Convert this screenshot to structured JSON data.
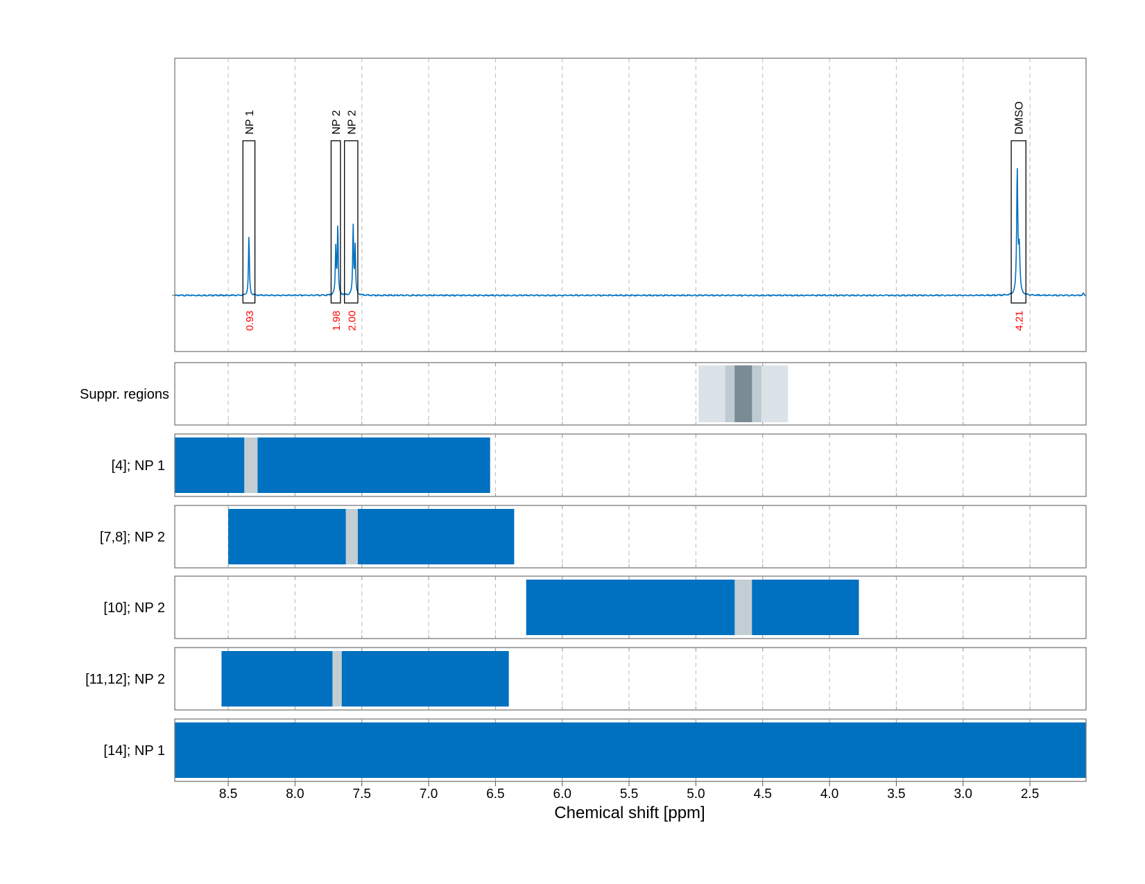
{
  "chart_data": {
    "type": "line",
    "x_axis": {
      "label": "Chemical shift [ppm]",
      "range": [
        8.9,
        2.08
      ],
      "reversed": true,
      "ticks": [
        8.5,
        8.0,
        7.5,
        7.0,
        6.5,
        6.0,
        5.5,
        5.0,
        4.5,
        4.0,
        3.5,
        3.0,
        2.5
      ],
      "tick_labels": [
        "8.5",
        "8.0",
        "7.5",
        "7.0",
        "6.5",
        "6.0",
        "5.5",
        "5.0",
        "4.5",
        "4.0",
        "3.5",
        "3.0",
        "2.5"
      ],
      "grid": true
    },
    "spectrum": {
      "color": "#0070c0",
      "baseline": 0,
      "y_range": [
        -0.33,
        1.0
      ],
      "peaks": [
        {
          "ppm": 8.345,
          "height": 0.41,
          "width": 0.004
        },
        {
          "ppm": 7.695,
          "height": 0.32,
          "width": 0.004
        },
        {
          "ppm": 7.68,
          "height": 0.47,
          "width": 0.004
        },
        {
          "ppm": 7.565,
          "height": 0.47,
          "width": 0.004
        },
        {
          "ppm": 7.55,
          "height": 0.32,
          "width": 0.004
        },
        {
          "ppm": 2.595,
          "height": 0.83,
          "width": 0.005
        },
        {
          "ppm": 2.58,
          "height": 0.3,
          "width": 0.006
        },
        {
          "ppm": 2.1,
          "height": 0.015,
          "width": 0.004
        }
      ]
    },
    "annotations": [
      {
        "label": "NP 1",
        "integral": "0.93",
        "ppm_from": 8.39,
        "ppm_to": 8.3
      },
      {
        "label": "NP 2",
        "integral": "1.98",
        "ppm_from": 7.73,
        "ppm_to": 7.66
      },
      {
        "label": "NP 2",
        "integral": "2.00",
        "ppm_from": 7.63,
        "ppm_to": 7.53
      },
      {
        "label": "DMSO",
        "integral": "4.21",
        "ppm_from": 2.64,
        "ppm_to": 2.53
      }
    ],
    "integral_color": "#ff0000",
    "suppression_regions": {
      "label": "Suppr. regions",
      "bands": [
        {
          "ppm_from": 4.98,
          "ppm_to": 4.31,
          "color": "#dce3e8"
        },
        {
          "ppm_from": 4.78,
          "ppm_to": 4.51,
          "color": "#bfcbd2"
        },
        {
          "ppm_from": 4.71,
          "ppm_to": 4.58,
          "color": "#7a8b95"
        }
      ]
    },
    "region_rows": [
      {
        "label": "[4]; NP 1",
        "range": [
          8.9,
          6.54
        ],
        "gap": [
          8.38,
          8.28
        ]
      },
      {
        "label": "[7,8]; NP 2",
        "range": [
          8.5,
          6.36
        ],
        "gap": [
          7.62,
          7.53
        ]
      },
      {
        "label": "[10]; NP 2",
        "range": [
          6.27,
          3.78
        ],
        "gap": [
          4.71,
          4.58
        ]
      },
      {
        "label": "[11,12]; NP 2",
        "range": [
          8.55,
          6.4
        ],
        "gap": [
          7.72,
          7.65
        ]
      },
      {
        "label": "[14]; NP 1",
        "range": [
          8.9,
          2.08
        ],
        "gap": null
      }
    ],
    "region_color": "#0070c0",
    "gap_color": "#c2cdd4"
  }
}
